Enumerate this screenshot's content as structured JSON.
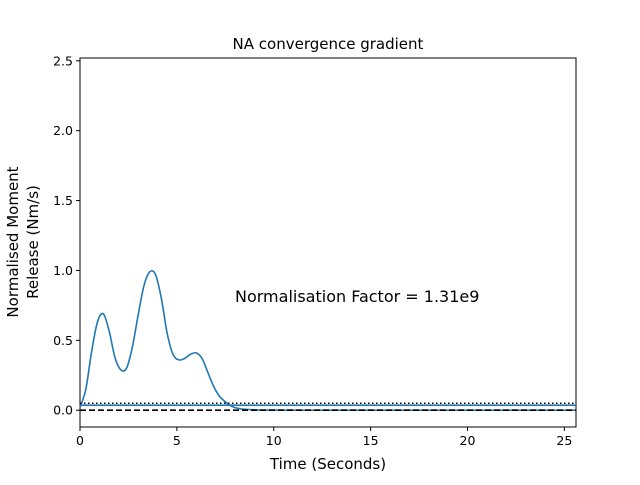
{
  "chart_data": {
    "type": "line",
    "title": "NA convergence gradient",
    "xlabel": "Time (Seconds)",
    "ylabel_lines": [
      "Normalised Moment",
      "Release (Nm/s)"
    ],
    "xlim": [
      0,
      25.6
    ],
    "ylim": [
      -0.12,
      2.52
    ],
    "x_ticks": [
      0,
      5,
      10,
      15,
      20,
      25
    ],
    "y_ticks": [
      0.0,
      0.5,
      1.0,
      1.5,
      2.0,
      2.5
    ],
    "x_tick_labels": [
      "0",
      "5",
      "10",
      "15",
      "20",
      "25"
    ],
    "y_tick_labels": [
      "0.0",
      "0.5",
      "1.0",
      "1.5",
      "2.0",
      "2.5"
    ],
    "grid": false,
    "annotation": {
      "text": "Normalisation Factor = 1.31e9",
      "x": 8.0,
      "y": 0.81
    },
    "series": [
      {
        "style": "solid",
        "color": "#1f77b4",
        "x": [
          0.0,
          0.3,
          0.6,
          0.9,
          1.2,
          1.5,
          1.8,
          2.1,
          2.4,
          2.7,
          3.0,
          3.3,
          3.6,
          3.9,
          4.2,
          4.5,
          4.8,
          5.1,
          5.4,
          5.7,
          6.0,
          6.3,
          6.6,
          6.9,
          7.2,
          7.5,
          7.8,
          8.1,
          8.4,
          9.0,
          10.0,
          12.0,
          15.0,
          20.0,
          25.6
        ],
        "y": [
          0.02,
          0.15,
          0.42,
          0.63,
          0.69,
          0.57,
          0.38,
          0.29,
          0.3,
          0.45,
          0.68,
          0.89,
          0.99,
          0.97,
          0.8,
          0.55,
          0.4,
          0.36,
          0.37,
          0.4,
          0.41,
          0.37,
          0.27,
          0.17,
          0.1,
          0.06,
          0.03,
          0.015,
          0.008,
          0.003,
          0.001,
          0.0,
          0.0,
          0.0,
          0.0
        ]
      },
      {
        "style": "dotted",
        "color": "#000000",
        "x": [
          0,
          25.6
        ],
        "y": [
          0.05,
          0.05
        ]
      },
      {
        "style": "solid",
        "color": "#1f77b4",
        "x": [
          0,
          25.6
        ],
        "y": [
          0.036,
          0.036
        ]
      },
      {
        "style": "dashed",
        "color": "#000000",
        "x": [
          0,
          25.6
        ],
        "y": [
          0.0,
          0.0
        ]
      }
    ]
  }
}
